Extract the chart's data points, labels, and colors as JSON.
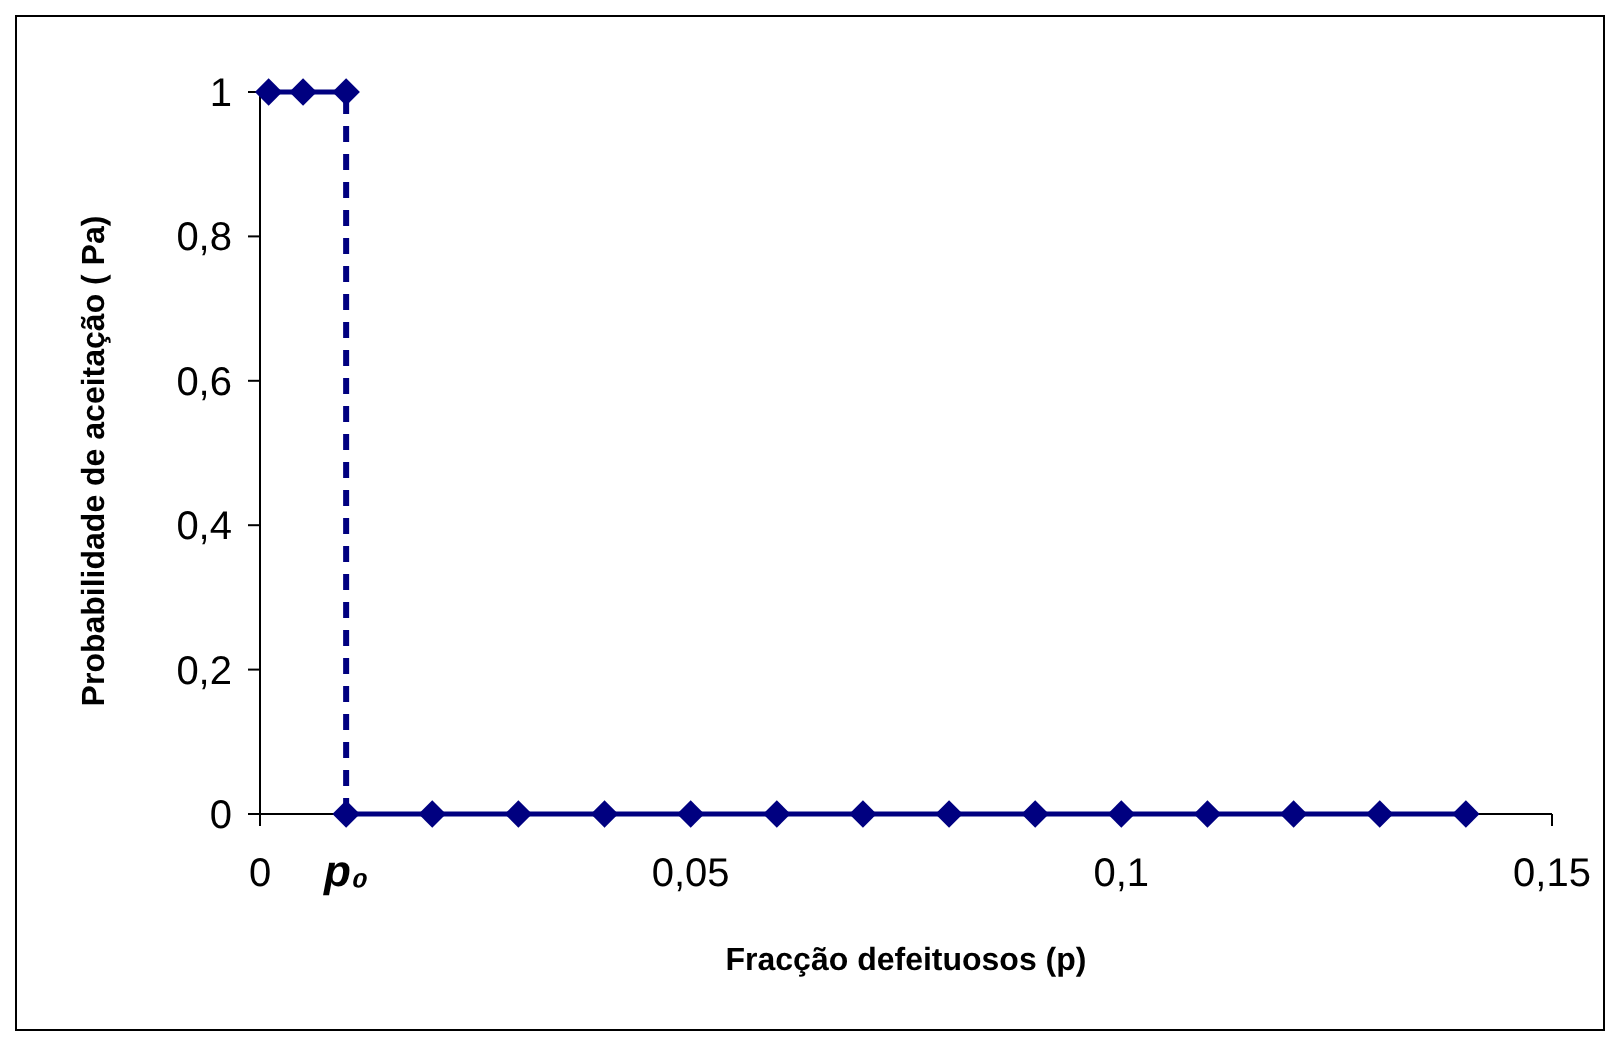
{
  "chart_data": {
    "type": "line",
    "xlabel": "Fracção defeituosos (p)",
    "ylabel": "Probabilidade de aceitação ( Pa)",
    "xlim": [
      0,
      0.15
    ],
    "xticks": [
      0,
      {
        "value": 0.05,
        "label": "0,05"
      },
      {
        "value": 0.1,
        "label": "0,1"
      },
      {
        "value": 0.15,
        "label": "0,15"
      }
    ],
    "ylim": [
      0,
      1
    ],
    "yticks": [
      0,
      {
        "value": 0.2,
        "label": "0,2"
      },
      {
        "value": 0.4,
        "label": "0,4"
      },
      {
        "value": 0.6,
        "label": "0,6"
      },
      {
        "value": 0.8,
        "label": "0,8"
      },
      1
    ],
    "series": [
      {
        "color": "#000080",
        "x": [
          0.001,
          0.005,
          0.01
        ],
        "values": [
          1,
          1,
          1
        ]
      },
      {
        "color": "#000080",
        "x": [
          0.01,
          0.02,
          0.03,
          0.04,
          0.05,
          0.06,
          0.07,
          0.08,
          0.09,
          0.1,
          0.11,
          0.12,
          0.13,
          0.14
        ],
        "values": [
          0,
          0,
          0,
          0,
          0,
          0,
          0,
          0,
          0,
          0,
          0,
          0,
          0,
          0
        ]
      }
    ],
    "ref_lines": [
      {
        "axis": "x",
        "value": 0.01,
        "label": "p₀",
        "color": "#000080",
        "line_style": "dashed"
      }
    ],
    "marker": "diamond",
    "line_style": "solid",
    "grid": false
  }
}
